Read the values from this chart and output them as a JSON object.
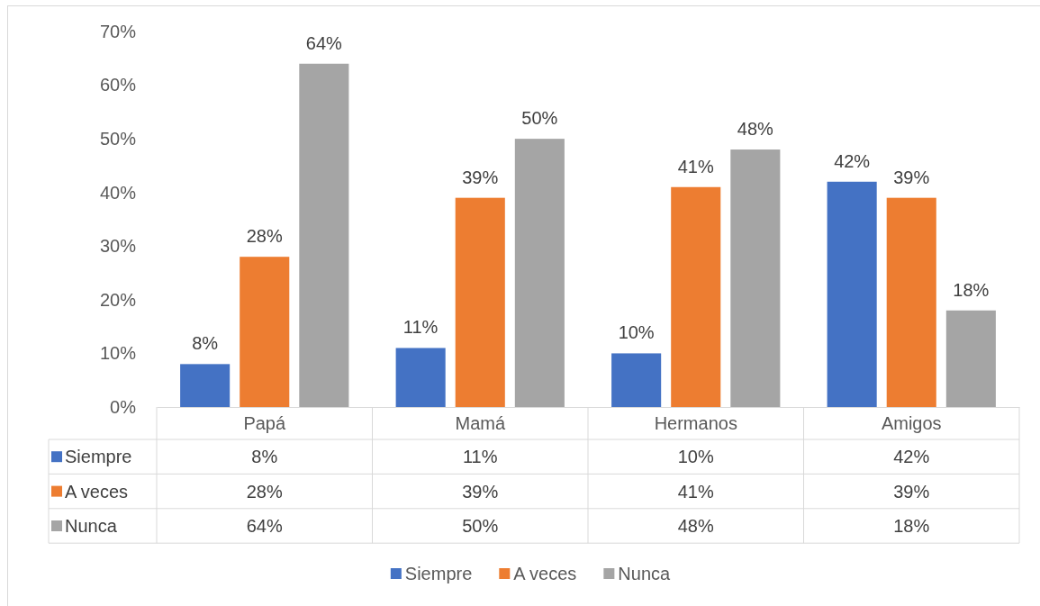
{
  "chart_data": {
    "type": "bar",
    "categories": [
      "Papá",
      "Mamá",
      "Hermanos",
      "Amigos"
    ],
    "series": [
      {
        "name": "Siempre",
        "color": "#4472c4",
        "values": [
          8,
          11,
          10,
          42
        ],
        "value_labels": [
          "8%",
          "11%",
          "10%",
          "42%"
        ]
      },
      {
        "name": "A veces",
        "color": "#ed7d31",
        "values": [
          28,
          39,
          41,
          39
        ],
        "value_labels": [
          "28%",
          "39%",
          "41%",
          "39%"
        ]
      },
      {
        "name": "Nunca",
        "color": "#a5a5a5",
        "values": [
          64,
          50,
          48,
          18
        ],
        "value_labels": [
          "64%",
          "50%",
          "48%",
          "18%"
        ]
      }
    ],
    "ylim": [
      0,
      70
    ],
    "yticks": [
      {
        "value": 0,
        "label": "0%"
      },
      {
        "value": 10,
        "label": "10%"
      },
      {
        "value": 20,
        "label": "20%"
      },
      {
        "value": 30,
        "label": "30%"
      },
      {
        "value": 40,
        "label": "40%"
      },
      {
        "value": 50,
        "label": "50%"
      },
      {
        "value": 60,
        "label": "60%"
      },
      {
        "value": 70,
        "label": "70%"
      }
    ],
    "legend": "bottom"
  }
}
